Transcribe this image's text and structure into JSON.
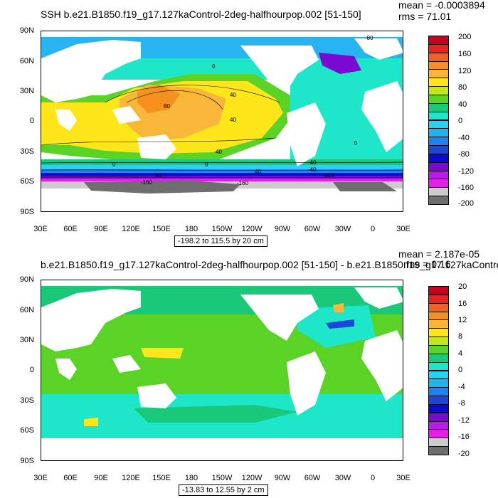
{
  "panels": [
    {
      "title": "SSH b.e21.B1850.f19_g17.127kaControl-2deg-halfhourpop.002 [51-150]",
      "mean": "mean = -0.0003894",
      "rms": "rms = 71.01",
      "lat_labels": [
        "90N",
        "60N",
        "30N",
        "0",
        "30S",
        "60S",
        "90S"
      ],
      "lon_labels": [
        "30E",
        "60E",
        "90E",
        "120E",
        "150E",
        "180",
        "150W",
        "120W",
        "90W",
        "60W",
        "30W",
        "0",
        "30E"
      ],
      "range_label": "-198.2 to 115.5 by 20 cm",
      "colorbar_labels": [
        "200",
        "160",
        "120",
        "80",
        "40",
        "0",
        "-40",
        "-80",
        "-120",
        "-160",
        "-200"
      ],
      "contour_labels": [
        "-80",
        "0",
        "80",
        "40",
        "40",
        "40",
        "40",
        "0",
        "0",
        "40",
        "-40",
        "-160",
        "-160",
        "0",
        "-40",
        "-100"
      ],
      "colorbar_colors": [
        "#c8001e",
        "#e8231e",
        "#f56020",
        "#f7911e",
        "#f9b73a",
        "#fde619",
        "#c8e61e",
        "#5ad226",
        "#19c879",
        "#1ee6c8",
        "#28d2f0",
        "#1eb4f0",
        "#1e82f0",
        "#1e46dc",
        "#0a0ad2",
        "#7a0ad2",
        "#b41ee6",
        "#e61ee6",
        "#cccccc",
        "#6e6e6e"
      ]
    },
    {
      "title": "b.e21.B1850.f19_g17.127kaControl-2deg-halfhourpop.002 [51-150] - b.e21.B1850.f19_g17.127kaContro",
      "mean": "mean = 2.187e-05",
      "rms": "rms = 0.16",
      "lat_labels": [
        "90N",
        "60N",
        "30N",
        "0",
        "30S",
        "60S",
        "90S"
      ],
      "lon_labels": [
        "30E",
        "60E",
        "90E",
        "120E",
        "150E",
        "180",
        "150W",
        "120W",
        "90W",
        "60W",
        "30W",
        "0",
        "30E"
      ],
      "range_label": "-13.83 to 12.55 by 2 cm",
      "colorbar_labels": [
        "20",
        "16",
        "12",
        "8",
        "4",
        "0",
        "-4",
        "-8",
        "-12",
        "-16",
        "-20"
      ],
      "colorbar_colors": [
        "#c8001e",
        "#e8231e",
        "#f56020",
        "#f7911e",
        "#f9b73a",
        "#fde619",
        "#c8e61e",
        "#5ad226",
        "#19c879",
        "#1ee6c8",
        "#28d2f0",
        "#1eb4f0",
        "#1e82f0",
        "#1e46dc",
        "#0a0ad2",
        "#7a0ad2",
        "#b41ee6",
        "#e61ee6",
        "#cccccc",
        "#6e6e6e"
      ]
    }
  ]
}
